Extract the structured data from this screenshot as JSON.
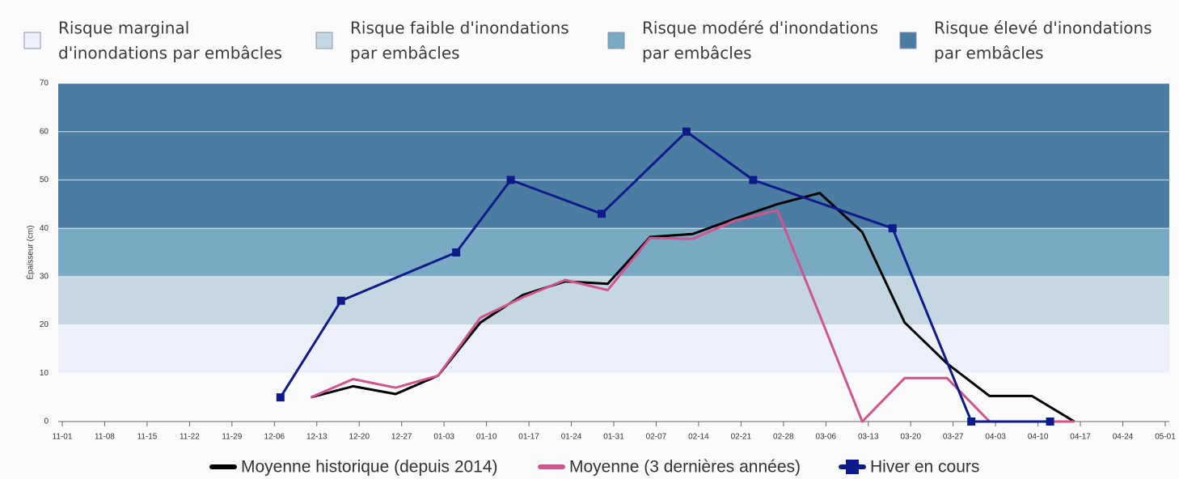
{
  "chart_data": {
    "type": "line",
    "y_label": "Épaisseur (cm)",
    "ylim": [
      0,
      70
    ],
    "yticks": [
      0,
      10,
      20,
      30,
      40,
      50,
      60,
      70
    ],
    "xlim": [
      "11-01",
      "05-01"
    ],
    "xticks": [
      "11-01",
      "11-08",
      "11-15",
      "11-22",
      "11-29",
      "12-06",
      "12-13",
      "12-20",
      "12-27",
      "01-03",
      "01-10",
      "01-17",
      "01-24",
      "01-31",
      "02-07",
      "02-14",
      "02-21",
      "02-28",
      "03-06",
      "03-13",
      "03-20",
      "03-27",
      "04-03",
      "04-10",
      "04-17",
      "04-24",
      "05-01"
    ],
    "grid": true,
    "bands": [
      {
        "name": [
          "Risque marginal",
          "d'inondations par embâcles"
        ],
        "from": 10,
        "to": 20,
        "color": "#eef0fb"
      },
      {
        "name": [
          "Risque faible d'inondations",
          "par embâcles"
        ],
        "from": 20,
        "to": 30,
        "color": "#c5d7e0"
      },
      {
        "name": [
          "Risque modéré d'inondations",
          "par embâcles"
        ],
        "from": 30,
        "to": 40,
        "color": "#7aa9c4"
      },
      {
        "name": [
          "Risque élevé d'inondations",
          "par embâcles"
        ],
        "from": 40,
        "to": 70,
        "color": "#4b7ca1"
      }
    ],
    "series": [
      {
        "name": "Moyenne historique (depuis 2014)",
        "color": "#000000",
        "markers": false,
        "x": [
          "12-12",
          "12-19",
          "12-26",
          "01-02",
          "01-09",
          "01-16",
          "01-23",
          "01-30",
          "02-06",
          "02-13",
          "02-20",
          "02-27",
          "03-05",
          "03-12",
          "03-19",
          "03-26",
          "04-02",
          "04-09",
          "04-16"
        ],
        "values": [
          5,
          7.3,
          5.7,
          9.5,
          20.5,
          26.2,
          29,
          28.5,
          38.2,
          38.8,
          42,
          45,
          47.3,
          39.2,
          20.5,
          12,
          5.3,
          5.3,
          0
        ]
      },
      {
        "name": "Moyenne (3 dernières années)",
        "color": "#d0558f",
        "markers": false,
        "x": [
          "12-12",
          "12-19",
          "12-26",
          "01-02",
          "01-09",
          "01-16",
          "01-23",
          "01-30",
          "02-06",
          "02-13",
          "02-20",
          "02-27",
          "03-05",
          "03-12",
          "03-19",
          "03-26",
          "04-02",
          "04-09",
          "04-16"
        ],
        "values": [
          5,
          8.8,
          7,
          9.5,
          21.5,
          25.7,
          29.3,
          27.2,
          38,
          37.8,
          41.6,
          43.7,
          22,
          0,
          9,
          9,
          0,
          0,
          0
        ]
      },
      {
        "name": "Hiver en cours",
        "color": "#0d1a8a",
        "markers": true,
        "x": [
          "12-07",
          "12-17",
          "01-05",
          "01-14",
          "01-29",
          "02-12",
          "02-23",
          "03-17",
          "03-30",
          "04-12"
        ],
        "values": [
          5,
          25,
          35,
          50,
          43,
          60,
          50,
          40,
          0,
          0
        ]
      }
    ]
  }
}
